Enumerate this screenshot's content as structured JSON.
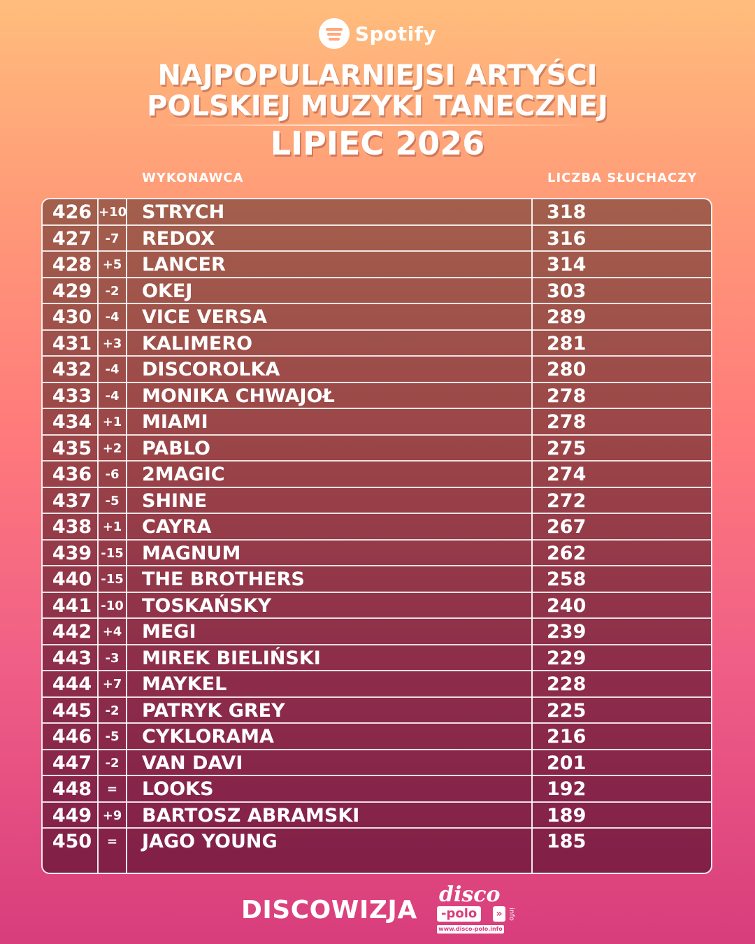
{
  "brand": {
    "name": "Spotify",
    "icon": "spotify-icon"
  },
  "title": {
    "line1": "NAJPOPULARNIEJSI ARTYŚCI",
    "line2": "POLSKIEJ MUZYKI TANECZNEJ",
    "line3": "LIPIEC 2026"
  },
  "columns": {
    "artist": "WYKONAWCA",
    "listeners": "LICZBA SŁUCHACZY"
  },
  "rows": [
    {
      "rank": "426",
      "change": "+10",
      "artist": "STRYCH",
      "listeners": "318"
    },
    {
      "rank": "427",
      "change": "-7",
      "artist": "REDOX",
      "listeners": "316"
    },
    {
      "rank": "428",
      "change": "+5",
      "artist": "LANCER",
      "listeners": "314"
    },
    {
      "rank": "429",
      "change": "-2",
      "artist": "OKEJ",
      "listeners": "303"
    },
    {
      "rank": "430",
      "change": "-4",
      "artist": "VICE VERSA",
      "listeners": "289"
    },
    {
      "rank": "431",
      "change": "+3",
      "artist": "KALIMERO",
      "listeners": "281"
    },
    {
      "rank": "432",
      "change": "-4",
      "artist": "DISCOROLKA",
      "listeners": "280"
    },
    {
      "rank": "433",
      "change": "-4",
      "artist": "MONIKA CHWAJOŁ",
      "listeners": "278"
    },
    {
      "rank": "434",
      "change": "+1",
      "artist": "MIAMI",
      "listeners": "278"
    },
    {
      "rank": "435",
      "change": "+2",
      "artist": "PABLO",
      "listeners": "275"
    },
    {
      "rank": "436",
      "change": "-6",
      "artist": "2MAGIC",
      "listeners": "274"
    },
    {
      "rank": "437",
      "change": "-5",
      "artist": "SHINE",
      "listeners": "272"
    },
    {
      "rank": "438",
      "change": "+1",
      "artist": "CAYRA",
      "listeners": "267"
    },
    {
      "rank": "439",
      "change": "-15",
      "artist": "MAGNUM",
      "listeners": "262"
    },
    {
      "rank": "440",
      "change": "-15",
      "artist": "THE BROTHERS",
      "listeners": "258"
    },
    {
      "rank": "441",
      "change": "-10",
      "artist": "TOSKAŃSKY",
      "listeners": "240"
    },
    {
      "rank": "442",
      "change": "+4",
      "artist": "MEGI",
      "listeners": "239"
    },
    {
      "rank": "443",
      "change": "-3",
      "artist": "MIREK BIELIŃSKI",
      "listeners": "229"
    },
    {
      "rank": "444",
      "change": "+7",
      "artist": "MAYKEL",
      "listeners": "228"
    },
    {
      "rank": "445",
      "change": "-2",
      "artist": "PATRYK GREY",
      "listeners": "225"
    },
    {
      "rank": "446",
      "change": "-5",
      "artist": "CYKLORAMA",
      "listeners": "216"
    },
    {
      "rank": "447",
      "change": "-2",
      "artist": "VAN DAVI",
      "listeners": "201"
    },
    {
      "rank": "448",
      "change": "=",
      "artist": "LOOKS",
      "listeners": "192"
    },
    {
      "rank": "449",
      "change": "+9",
      "artist": "BARTOSZ ABRAMSKI",
      "listeners": "189"
    },
    {
      "rank": "450",
      "change": "=",
      "artist": "JAGO YOUNG",
      "listeners": "185"
    }
  ],
  "footer": {
    "brand": "DISCOWIZJA",
    "logo_top": "disco",
    "logo_bottom": "-polo",
    "logo_side": "info",
    "logo_url": "www.disco-polo.info"
  }
}
